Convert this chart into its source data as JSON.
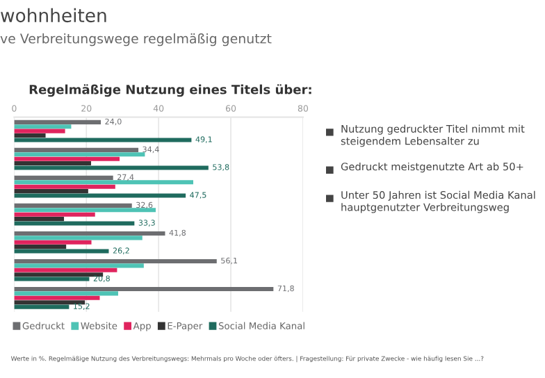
{
  "chart_data": {
    "type": "bar",
    "orientation": "horizontal",
    "title": "Regelmäßige Nutzung eines Titels über:",
    "categories": [
      null,
      null,
      null,
      null,
      null,
      null,
      null
    ],
    "series": [
      {
        "name": "Gedruckt",
        "color": "#6d6e71",
        "values": [
          24.0,
          34.4,
          27.4,
          32.6,
          41.8,
          56.1,
          71.8
        ],
        "value_labels": [
          "24,0",
          "34,4",
          "27,4",
          "32,6",
          "41,8",
          "56,1",
          "71,8"
        ]
      },
      {
        "name": "Website",
        "color": "#4ec3b5",
        "values": [
          15.8,
          36.2,
          49.6,
          39.2,
          35.5,
          35.9,
          28.8
        ]
      },
      {
        "name": "App",
        "color": "#e0245e",
        "values": [
          14.1,
          29.2,
          28.0,
          22.4,
          21.4,
          28.5,
          23.7
        ]
      },
      {
        "name": "E-Paper",
        "color": "#333333",
        "values": [
          8.7,
          21.3,
          20.5,
          13.8,
          14.4,
          24.6,
          19.6
        ]
      },
      {
        "name": "Social Media Kanal",
        "color": "#1f6b5e",
        "values": [
          49.1,
          53.8,
          47.5,
          33.3,
          26.2,
          20.8,
          15.2
        ],
        "value_labels": [
          "49,1",
          "53,8",
          "47,5",
          "33,3",
          "26,2",
          "20,8",
          "15,2"
        ]
      }
    ],
    "xlim": [
      0,
      80
    ],
    "xticks": [
      0,
      20,
      40,
      60,
      80
    ],
    "grid": "x",
    "legend": "bottom",
    "annotations": [
      "wohnheiten",
      "ve Verbreitungswege regelmäßig genutzt",
      "Nutzung gedruckter Titel nimmt mit steigendem Lebensalter zu",
      "Gedruckt meistgenutzte Art ab 50+",
      "Unter 50 Jahren ist Social Media Kanal hauptgenutzter Verbreitungsweg",
      "Werte in %. Regelmäßige Nutzung des Verbreitungswegs: Mehrmals pro Woche oder öfters. | Fragestellung: Für private Zwecke - wie häufig lesen Sie ...?"
    ]
  }
}
